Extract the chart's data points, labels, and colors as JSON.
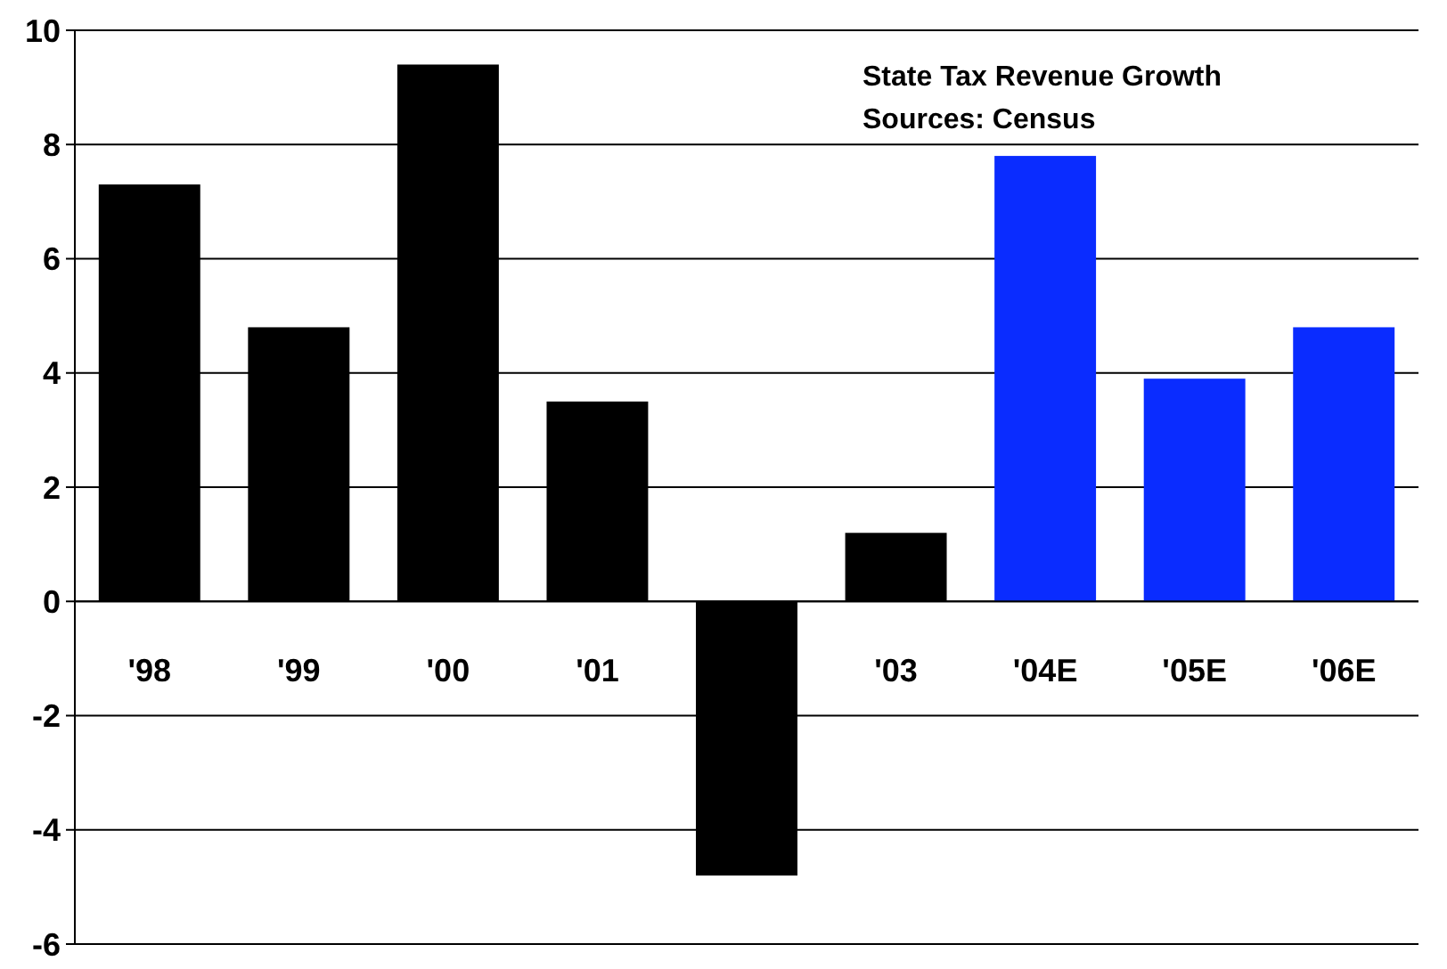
{
  "chart_data": {
    "type": "bar",
    "title": "State Tax Revenue Growth",
    "annotations": [
      "Sources: Census"
    ],
    "categories": [
      "'98",
      "'99",
      "'00",
      "'01",
      null,
      "'03",
      "'04E",
      "'05E",
      "'06E"
    ],
    "values": [
      7.3,
      4.8,
      9.4,
      3.5,
      -4.8,
      1.2,
      7.8,
      3.9,
      4.8
    ],
    "colors": [
      "#000000",
      "#000000",
      "#000000",
      "#000000",
      "#000000",
      "#000000",
      "#0a2cff",
      "#0a2cff",
      "#0a2cff"
    ],
    "ylim": [
      -6,
      10
    ],
    "yticks": [
      -6,
      -4,
      -2,
      0,
      2,
      4,
      6,
      8,
      10
    ],
    "grid": "y"
  }
}
